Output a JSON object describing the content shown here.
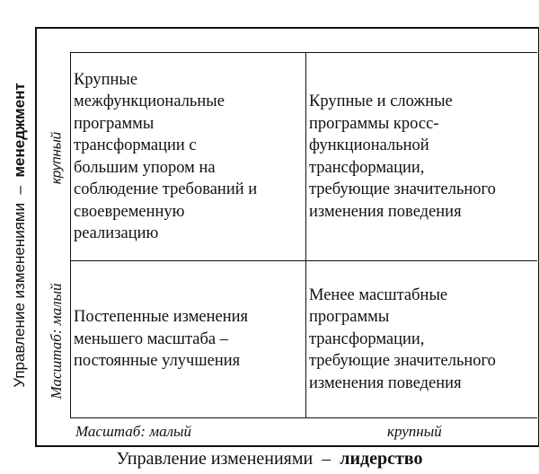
{
  "y_axis": {
    "label": "Управление изменениями",
    "dash": "–",
    "label_bold": "менеджмент",
    "high": "крупный",
    "low": "Масштаб: малый"
  },
  "x_axis": {
    "label": "Управление изменениями",
    "dash": "–",
    "label_bold": "лидерство",
    "low": "Масштаб: малый",
    "high": "крупный"
  },
  "cells": [
    {
      "position": "top-left",
      "lines": [
        "Крупные",
        "межфункциональные",
        "программы",
        "трансформации с",
        "большим упором на",
        "соблюдение требований и",
        "своевременную",
        "реализацию"
      ]
    },
    {
      "position": "top-right",
      "lines": [
        "Крупные и сложные",
        "программы кросс-",
        "функциональной",
        "трансформации,",
        "требующие значительного",
        "изменения поведения"
      ]
    },
    {
      "position": "bottom-left",
      "lines": [
        "Постепенные изменения",
        "меньшего масштаба –",
        "постоянные улучшения"
      ]
    },
    {
      "position": "bottom-right",
      "lines": [
        "Менее масштабные",
        "программы",
        "трансформации,",
        "требующие значительного",
        "изменения поведения"
      ]
    }
  ]
}
